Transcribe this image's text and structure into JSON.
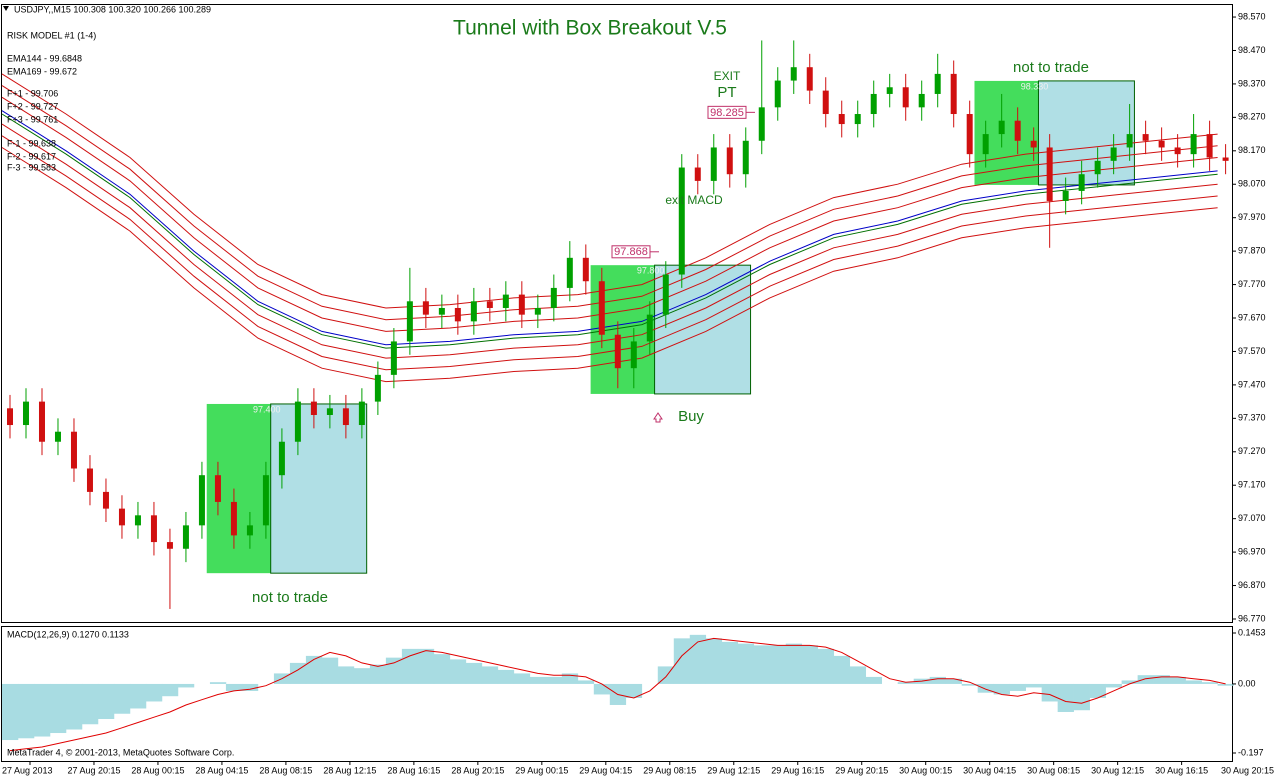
{
  "chart_data": [
    {
      "type": "candlestick",
      "title": "Tunnel with Box Breakout V.5",
      "info": [
        "USDJPY,,M15  100.308 100.320 100.266 100.289",
        "RISK MODEL #1 (1-4)",
        "EMA144 - 99.6848",
        "EMA169 - 99.672",
        "F+1 - 99.706",
        "F+2 - 99.727",
        "F+3 - 99.761",
        "F-1 - 99.638",
        "F-2 - 99.617",
        "F-3 - 99.583"
      ],
      "grid": false,
      "xlim": [
        0,
        76.9
      ],
      "xticks": [
        {
          "value": 1.75,
          "label": "27 Aug 2013"
        },
        {
          "value": 5.75,
          "label": "27 Aug 20:15"
        },
        {
          "value": 9.75,
          "label": "28 Aug 00:15"
        },
        {
          "value": 13.75,
          "label": "28 Aug 04:15"
        },
        {
          "value": 17.75,
          "label": "28 Aug 08:15"
        },
        {
          "value": 21.75,
          "label": "28 Aug 12:15"
        },
        {
          "value": 25.75,
          "label": "28 Aug 16:15"
        },
        {
          "value": 29.75,
          "label": "28 Aug 20:15"
        },
        {
          "value": 33.75,
          "label": "29 Aug 00:15"
        },
        {
          "value": 37.75,
          "label": "29 Aug 04:15"
        },
        {
          "value": 41.75,
          "label": "29 Aug 08:15"
        },
        {
          "value": 45.75,
          "label": "29 Aug 12:15"
        },
        {
          "value": 49.75,
          "label": "29 Aug 16:15"
        },
        {
          "value": 53.75,
          "label": "29 Aug 20:15"
        },
        {
          "value": 57.75,
          "label": "30 Aug 00:15"
        },
        {
          "value": 61.75,
          "label": "30 Aug 04:15"
        },
        {
          "value": 65.75,
          "label": "30 Aug 08:15"
        },
        {
          "value": 69.75,
          "label": "30 Aug 12:15"
        },
        {
          "value": 73.75,
          "label": "30 Aug 16:15"
        },
        {
          "value": 77.75,
          "label": "30 Aug 20:15"
        }
      ],
      "ylim": [
        96.758,
        98.606
      ],
      "yticks": [
        {
          "value": 98.57,
          "label": "98.570"
        },
        {
          "value": 98.47,
          "label": "98.470"
        },
        {
          "value": 98.37,
          "label": "98.370"
        },
        {
          "value": 98.27,
          "label": "98.270"
        },
        {
          "value": 98.17,
          "label": "98.170"
        },
        {
          "value": 98.07,
          "label": "98.070"
        },
        {
          "value": 97.97,
          "label": "97.970"
        },
        {
          "value": 97.87,
          "label": "97.870"
        },
        {
          "value": 97.77,
          "label": "97.770"
        },
        {
          "value": 97.67,
          "label": "97.670"
        },
        {
          "value": 97.57,
          "label": "97.570"
        },
        {
          "value": 97.47,
          "label": "97.470"
        },
        {
          "value": 97.37,
          "label": "97.370"
        },
        {
          "value": 97.27,
          "label": "97.270"
        },
        {
          "value": 97.17,
          "label": "97.170"
        },
        {
          "value": 97.07,
          "label": "97.070"
        },
        {
          "value": 96.97,
          "label": "96.970"
        },
        {
          "value": 96.87,
          "label": "96.870"
        },
        {
          "value": 96.77,
          "label": "96.770"
        }
      ],
      "up_color": "#00a000",
      "down_color": "#d01010",
      "open": [
        97.4,
        97.35,
        97.42,
        97.3,
        97.33,
        97.22,
        97.15,
        97.1,
        97.05,
        97.08,
        97.0,
        96.98,
        97.05,
        97.2,
        97.12,
        97.02,
        97.05,
        97.2,
        97.3,
        97.42,
        97.38,
        97.4,
        97.35,
        97.42,
        97.5,
        97.6,
        97.72,
        97.68,
        97.7,
        97.66,
        97.72,
        97.7,
        97.74,
        97.68,
        97.7,
        97.76,
        97.85,
        97.78,
        97.62,
        97.52,
        97.6,
        97.68,
        97.8,
        98.12,
        98.08,
        98.18,
        98.1,
        98.2,
        98.3,
        98.38,
        98.42,
        98.35,
        98.28,
        98.25,
        98.28,
        98.34,
        98.36,
        98.3,
        98.34,
        98.4,
        98.28,
        98.16,
        98.22,
        98.26,
        98.2,
        98.18,
        98.02,
        98.05,
        98.1,
        98.14,
        98.18,
        98.22,
        98.2,
        98.18,
        98.16,
        98.22,
        98.15
      ],
      "high": [
        97.44,
        97.46,
        97.46,
        97.37,
        97.37,
        97.26,
        97.19,
        97.14,
        97.12,
        97.12,
        97.04,
        97.09,
        97.24,
        97.24,
        97.16,
        97.09,
        97.24,
        97.34,
        97.46,
        97.46,
        97.44,
        97.44,
        97.46,
        97.54,
        97.64,
        97.82,
        97.76,
        97.74,
        97.74,
        97.76,
        97.76,
        97.78,
        97.78,
        97.74,
        97.8,
        97.9,
        97.89,
        97.82,
        97.66,
        97.64,
        97.72,
        97.84,
        98.16,
        98.16,
        98.22,
        98.22,
        98.24,
        98.5,
        98.42,
        98.5,
        98.46,
        98.39,
        98.32,
        98.32,
        98.38,
        98.4,
        98.4,
        98.38,
        98.46,
        98.44,
        98.32,
        98.26,
        98.34,
        98.3,
        98.24,
        98.22,
        98.09,
        98.14,
        98.18,
        98.22,
        98.31,
        98.26,
        98.24,
        98.22,
        98.28,
        98.26,
        98.19
      ],
      "low": [
        97.31,
        97.31,
        97.26,
        97.26,
        97.18,
        97.11,
        97.06,
        97.01,
        97.01,
        96.96,
        96.8,
        96.94,
        97.01,
        97.08,
        96.98,
        96.98,
        97.01,
        97.16,
        97.26,
        97.34,
        97.34,
        97.31,
        97.31,
        97.38,
        97.46,
        97.56,
        97.64,
        97.64,
        97.62,
        97.62,
        97.66,
        97.66,
        97.64,
        97.64,
        97.66,
        97.72,
        97.74,
        97.58,
        97.46,
        97.46,
        97.56,
        97.64,
        97.76,
        98.04,
        98.04,
        98.06,
        98.06,
        98.16,
        98.26,
        98.34,
        98.31,
        98.24,
        98.21,
        98.21,
        98.24,
        98.3,
        98.26,
        98.26,
        98.3,
        98.24,
        98.12,
        98.12,
        98.18,
        98.16,
        98.14,
        97.88,
        97.98,
        98.01,
        98.06,
        98.1,
        98.14,
        98.16,
        98.14,
        98.12,
        98.12,
        98.11,
        98.1
      ],
      "close": [
        97.35,
        97.42,
        97.3,
        97.33,
        97.22,
        97.15,
        97.1,
        97.05,
        97.08,
        97.0,
        96.98,
        97.05,
        97.2,
        97.12,
        97.02,
        97.05,
        97.2,
        97.3,
        97.42,
        97.38,
        97.4,
        97.35,
        97.42,
        97.5,
        97.6,
        97.72,
        97.68,
        97.7,
        97.66,
        97.72,
        97.7,
        97.74,
        97.68,
        97.7,
        97.76,
        97.85,
        97.78,
        97.62,
        97.52,
        97.6,
        97.68,
        97.8,
        98.12,
        98.08,
        98.18,
        98.1,
        98.2,
        98.3,
        98.38,
        98.42,
        98.35,
        98.28,
        98.25,
        98.28,
        98.34,
        98.36,
        98.3,
        98.34,
        98.4,
        98.28,
        98.16,
        98.22,
        98.26,
        98.2,
        98.18,
        98.02,
        98.05,
        98.1,
        98.14,
        98.18,
        98.22,
        98.2,
        98.18,
        98.16,
        98.22,
        98.15,
        98.14
      ],
      "lines": {
        "x": [
          0,
          4,
          8,
          12,
          16,
          20,
          24,
          28,
          32,
          36,
          40,
          44,
          48,
          52,
          56,
          60,
          64,
          68,
          72,
          76
        ],
        "series": [
          {
            "color": "#d01010",
            "values": [
              98.4,
              98.28,
              98.15,
              97.98,
              97.83,
              97.74,
              97.7,
              97.71,
              97.73,
              97.74,
              97.77,
              97.85,
              97.95,
              98.03,
              98.07,
              98.13,
              98.16,
              98.18,
              98.2,
              98.22
            ]
          },
          {
            "color": "#d01010",
            "values": [
              98.365,
              98.245,
              98.115,
              97.945,
              97.795,
              97.705,
              97.665,
              97.675,
              97.695,
              97.705,
              97.735,
              97.815,
              97.915,
              97.995,
              98.035,
              98.095,
              98.125,
              98.145,
              98.165,
              98.185
            ]
          },
          {
            "color": "#d01010",
            "values": [
              98.33,
              98.21,
              98.08,
              97.91,
              97.76,
              97.67,
              97.63,
              97.64,
              97.66,
              97.67,
              97.7,
              97.78,
              97.88,
              97.96,
              98.0,
              98.06,
              98.09,
              98.11,
              98.13,
              98.15
            ]
          },
          {
            "color": "#0000c8",
            "values": [
              98.29,
              98.17,
              98.04,
              97.87,
              97.72,
              97.63,
              97.59,
              97.6,
              97.62,
              97.63,
              97.66,
              97.74,
              97.84,
              97.92,
              97.96,
              98.02,
              98.05,
              98.07,
              98.09,
              98.11
            ]
          },
          {
            "color": "#007000",
            "values": [
              98.28,
              98.16,
              98.03,
              97.86,
              97.71,
              97.62,
              97.58,
              97.59,
              97.61,
              97.62,
              97.65,
              97.73,
              97.83,
              97.91,
              97.95,
              98.01,
              98.04,
              98.06,
              98.08,
              98.1
            ]
          },
          {
            "color": "#d01010",
            "values": [
              98.25,
              98.13,
              98.0,
              97.83,
              97.68,
              97.59,
              97.55,
              97.56,
              97.58,
              97.59,
              97.62,
              97.7,
              97.8,
              97.88,
              97.92,
              97.98,
              98.01,
              98.03,
              98.05,
              98.07
            ]
          },
          {
            "color": "#d01010",
            "values": [
              98.215,
              98.095,
              97.965,
              97.795,
              97.645,
              97.555,
              97.515,
              97.525,
              97.545,
              97.555,
              97.585,
              97.665,
              97.765,
              97.845,
              97.885,
              97.945,
              97.975,
              97.995,
              98.015,
              98.035
            ]
          },
          {
            "color": "#d01010",
            "values": [
              98.18,
              98.06,
              97.93,
              97.76,
              97.61,
              97.52,
              97.48,
              97.49,
              97.51,
              97.52,
              97.55,
              97.63,
              97.73,
              97.81,
              97.85,
              97.91,
              97.94,
              97.96,
              97.98,
              98.0
            ]
          }
        ]
      },
      "boxes": [
        {
          "from": 12.8,
          "split": 16.8,
          "to": 22.8,
          "top": 97.413,
          "bottom": 96.907,
          "label": "97.400"
        },
        {
          "from": 36.8,
          "split": 40.8,
          "to": 46.8,
          "top": 97.828,
          "bottom": 97.443,
          "label": "97.800"
        },
        {
          "from": 60.8,
          "split": 64.8,
          "to": 70.8,
          "top": 98.379,
          "bottom": 98.068,
          "label": "98.330"
        }
      ],
      "price_marks": [
        98.285,
        97.868
      ],
      "annotations": [
        "not to trade",
        "not to trade",
        "Buy",
        "EXIT",
        "PT",
        "exit MACD"
      ]
    },
    {
      "type": "macd",
      "title": "MACD(12,26,9) 0.1270 0.1133",
      "note": "MetaTrader 4, © 2001-2013, MetaQuotes Software Corp.",
      "ylim": [
        -0.2198,
        0.1624
      ],
      "yticks": [
        0.1453,
        {
          "value": 0,
          "label": "0.00"
        },
        -0.197
      ],
      "color": "#a8dce2",
      "values": [
        -0.16,
        -0.155,
        -0.15,
        -0.14,
        -0.13,
        -0.115,
        -0.1,
        -0.085,
        -0.07,
        -0.05,
        -0.035,
        -0.01,
        0.0,
        0.005,
        -0.02,
        -0.02,
        0.0,
        0.03,
        0.06,
        0.08,
        0.075,
        0.05,
        0.045,
        0.055,
        0.075,
        0.1,
        0.1,
        0.085,
        0.07,
        0.06,
        0.05,
        0.04,
        0.03,
        0.02,
        0.02,
        0.03,
        0.01,
        -0.03,
        -0.06,
        -0.04,
        0.0,
        0.05,
        0.13,
        0.14,
        0.13,
        0.12,
        0.115,
        0.11,
        0.11,
        0.115,
        0.11,
        0.1,
        0.08,
        0.05,
        0.02,
        0.0,
        0.005,
        0.015,
        0.02,
        0.015,
        -0.005,
        -0.025,
        -0.03,
        -0.02,
        -0.01,
        -0.05,
        -0.08,
        -0.075,
        -0.04,
        -0.01,
        0.01,
        0.025,
        0.025,
        0.02,
        0.01,
        0.005,
        -0.005
      ],
      "signal_color": "#e00000",
      "signal": [
        -0.19,
        -0.185,
        -0.18,
        -0.17,
        -0.16,
        -0.15,
        -0.14,
        -0.125,
        -0.11,
        -0.095,
        -0.08,
        -0.06,
        -0.045,
        -0.03,
        -0.02,
        -0.015,
        -0.005,
        0.015,
        0.04,
        0.07,
        0.09,
        0.08,
        0.06,
        0.05,
        0.06,
        0.08,
        0.095,
        0.09,
        0.08,
        0.07,
        0.06,
        0.05,
        0.04,
        0.03,
        0.025,
        0.025,
        0.02,
        0.0,
        -0.03,
        -0.04,
        -0.02,
        0.02,
        0.08,
        0.12,
        0.13,
        0.125,
        0.12,
        0.115,
        0.11,
        0.11,
        0.11,
        0.105,
        0.09,
        0.065,
        0.04,
        0.015,
        0.005,
        0.008,
        0.015,
        0.015,
        0.005,
        -0.015,
        -0.03,
        -0.035,
        -0.025,
        -0.03,
        -0.05,
        -0.055,
        -0.04,
        -0.02,
        0.0,
        0.015,
        0.02,
        0.02,
        0.015,
        0.01,
        0.0
      ]
    }
  ]
}
